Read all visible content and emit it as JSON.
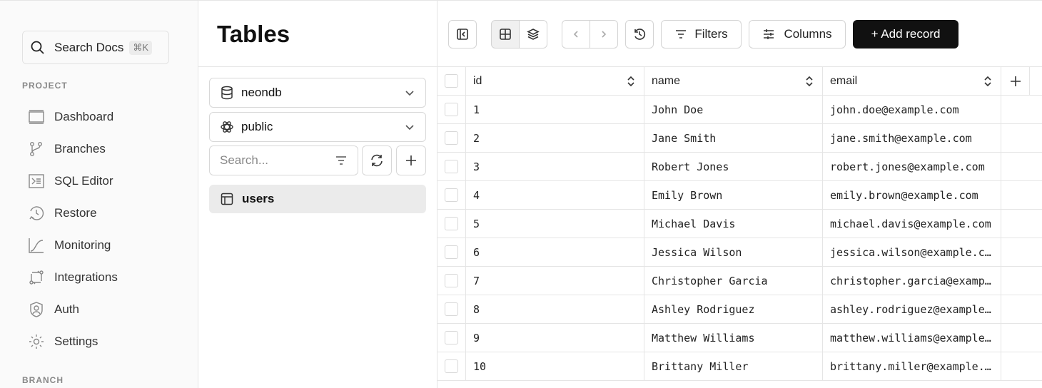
{
  "sidebar": {
    "search_label": "Search Docs",
    "search_shortcut": "⌘K",
    "section_project": "PROJECT",
    "section_branch": "BRANCH",
    "items": [
      {
        "label": "Dashboard",
        "icon": "dashboard-icon"
      },
      {
        "label": "Branches",
        "icon": "branch-icon"
      },
      {
        "label": "SQL Editor",
        "icon": "terminal-icon"
      },
      {
        "label": "Restore",
        "icon": "restore-icon"
      },
      {
        "label": "Monitoring",
        "icon": "chart-icon"
      },
      {
        "label": "Integrations",
        "icon": "integrations-icon"
      },
      {
        "label": "Auth",
        "icon": "user-shield-icon"
      },
      {
        "label": "Settings",
        "icon": "gear-icon"
      }
    ]
  },
  "panel": {
    "title": "Tables",
    "database": "neondb",
    "schema": "public",
    "search_placeholder": "Search...",
    "tables": [
      {
        "name": "users"
      }
    ]
  },
  "toolbar": {
    "filters": "Filters",
    "columns": "Columns",
    "add_record": "+ Add record"
  },
  "grid": {
    "columns": [
      "id",
      "name",
      "email"
    ],
    "rows": [
      [
        "1",
        "John Doe",
        "john.doe@example.com"
      ],
      [
        "2",
        "Jane Smith",
        "jane.smith@example.com"
      ],
      [
        "3",
        "Robert Jones",
        "robert.jones@example.com"
      ],
      [
        "4",
        "Emily Brown",
        "emily.brown@example.com"
      ],
      [
        "5",
        "Michael Davis",
        "michael.davis@example.com"
      ],
      [
        "6",
        "Jessica Wilson",
        "jessica.wilson@example.com"
      ],
      [
        "7",
        "Christopher Garcia",
        "christopher.garcia@example.com"
      ],
      [
        "8",
        "Ashley Rodriguez",
        "ashley.rodriguez@example.com"
      ],
      [
        "9",
        "Matthew Williams",
        "matthew.williams@example.com"
      ],
      [
        "10",
        "Brittany Miller",
        "brittany.miller@example.com"
      ]
    ]
  }
}
